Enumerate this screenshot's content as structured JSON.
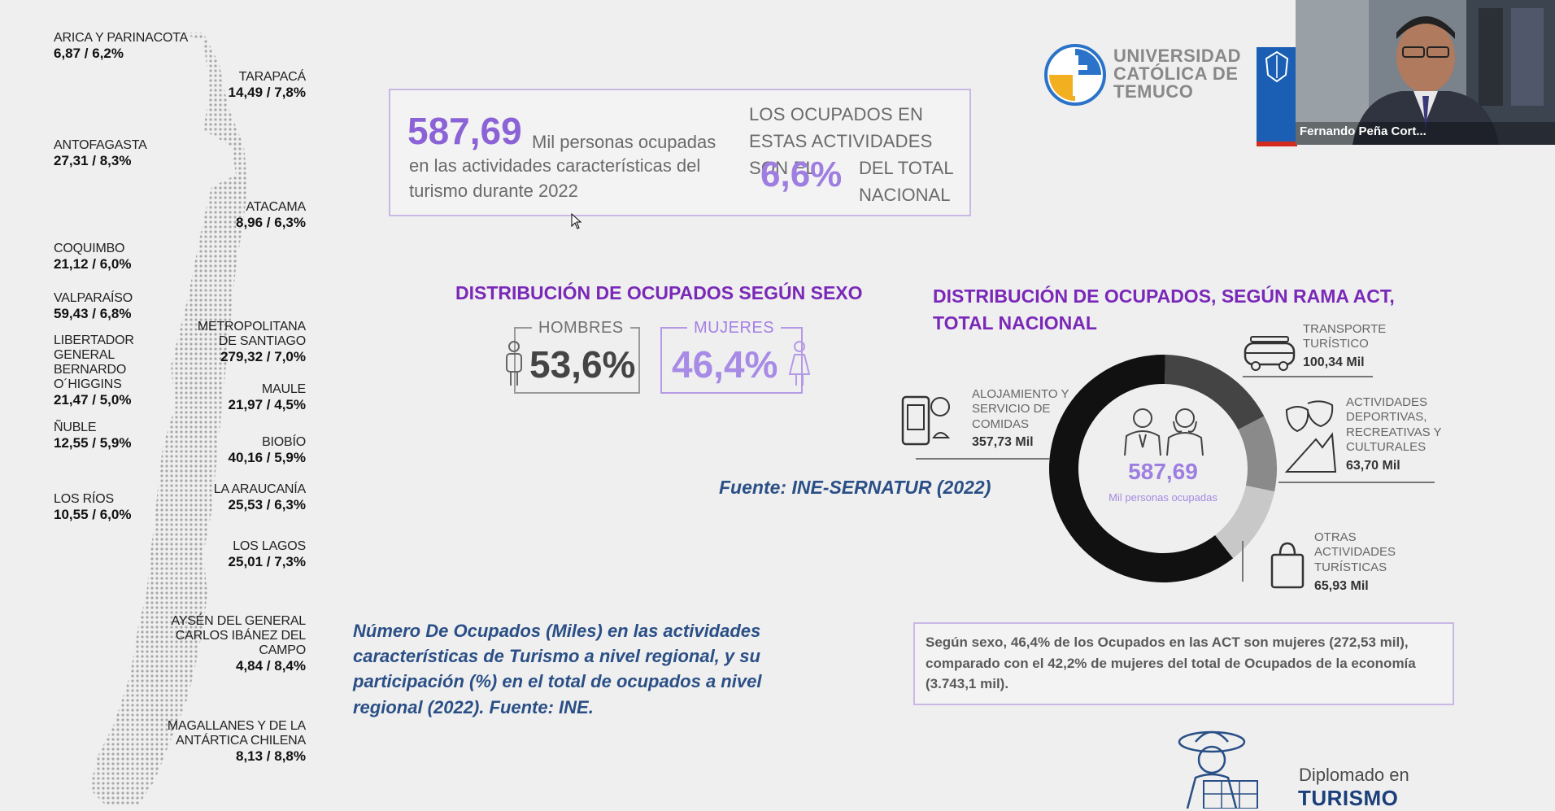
{
  "map": {
    "regions": [
      {
        "name": "ARICA Y PARINACOTA",
        "value": "6,87 / 6,2%",
        "side": "left"
      },
      {
        "name": "TARAPACÁ",
        "value": "14,49 / 7,8%",
        "side": "right"
      },
      {
        "name": "ANTOFAGASTA",
        "value": "27,31 / 8,3%",
        "side": "left"
      },
      {
        "name": "ATACAMA",
        "value": "8,96 / 6,3%",
        "side": "right"
      },
      {
        "name": "COQUIMBO",
        "value": "21,12 / 6,0%",
        "side": "left"
      },
      {
        "name": "VALPARAÍSO",
        "value": "59,43 / 6,8%",
        "side": "left"
      },
      {
        "name": "METROPOLITANA\nDE SANTIAGO",
        "value": "279,32 / 7,0%",
        "side": "right"
      },
      {
        "name": "LIBERTADOR\nGENERAL\nBERNARDO\nO´HIGGINS",
        "value": "21,47 / 5,0%",
        "side": "left"
      },
      {
        "name": "MAULE",
        "value": "21,97 / 4,5%",
        "side": "right"
      },
      {
        "name": "ÑUBLE",
        "value": "12,55 / 5,9%",
        "side": "left"
      },
      {
        "name": "BIOBÍO",
        "value": "40,16 / 5,9%",
        "side": "right"
      },
      {
        "name": "LA ARAUCANÍA",
        "value": "25,53 / 6,3%",
        "side": "right"
      },
      {
        "name": "LOS RÍOS",
        "value": "10,55 / 6,0%",
        "side": "left"
      },
      {
        "name": "LOS LAGOS",
        "value": "25,01 / 7,3%",
        "side": "right"
      },
      {
        "name": "AYSÉN DEL GENERAL\nCARLOS IBÁNEZ DEL\nCAMPO",
        "value": "4,84 / 8,4%",
        "side": "right"
      },
      {
        "name": "MAGALLANES Y DE LA\nANTÁRTICA CHILENA",
        "value": "8,13 / 8,8%",
        "side": "right"
      }
    ]
  },
  "summary": {
    "number": "587,69",
    "unit": "Mil personas ocupadas",
    "description": "en las actividades características del turismo durante  2022",
    "right_text_1": "LOS OCUPADOS EN ESTAS ACTIVIDADES SON EL",
    "percent": "6,6%",
    "right_text_2": "DEL TOTAL NACIONAL"
  },
  "sex_distribution": {
    "title": "DISTRIBUCIÓN DE OCUPADOS SEGÚN SEXO",
    "men_label": "HOMBRES",
    "men_value": "53,6%",
    "women_label": "MUJERES",
    "women_value": "46,4%"
  },
  "branch_distribution": {
    "title": "DISTRIBUCIÓN DE OCUPADOS, SEGÚN RAMA ACT, TOTAL NACIONAL",
    "center_value": "587,69",
    "center_caption": "Mil personas ocupadas",
    "items": [
      {
        "name": "ALOJAMIENTO Y\nSERVICIO DE\nCOMIDAS",
        "value": "357,73 Mil",
        "color": "#111111"
      },
      {
        "name": "TRANSPORTE\nTURÍSTICO",
        "value": "100,34 Mil",
        "color": "#444444"
      },
      {
        "name": "ACTIVIDADES\nDEPORTIVAS,\nRECREATIVAS Y\nCULTURALES",
        "value": "63,70 Mil",
        "color": "#8a8a8a"
      },
      {
        "name": "OTRAS\nACTIVIDADES\nTURÍSTICAS",
        "value": "65,93 Mil",
        "color": "#c8c8c8"
      }
    ]
  },
  "source": "Fuente: INE-SERNATUR (2022)",
  "map_caption": "Número De Ocupados (Miles) en las actividades características de Turismo a nivel regional, y su participación (%) en el total de ocupados a nivel regional (2022). Fuente: INE.",
  "note": "Según sexo, 46,4% de los Ocupados en las ACT son mujeres (272,53 mil), comparado con el 42,2% de mujeres del total de Ocupados de la economía (3.743,1 mil).",
  "logo": {
    "line1": "UNIVERSIDAD",
    "line2": "CATÓLICA DE",
    "line3": "TEMUCO"
  },
  "webcam": {
    "participant_name": "Fernando Peña Cort..."
  },
  "program": {
    "line1": "Diplomado en",
    "line2": "TURISMO"
  },
  "colors": {
    "accent_purple": "#7a28b8",
    "accent_lilac": "#9e7ee0",
    "caption_blue": "#2a4f86"
  }
}
